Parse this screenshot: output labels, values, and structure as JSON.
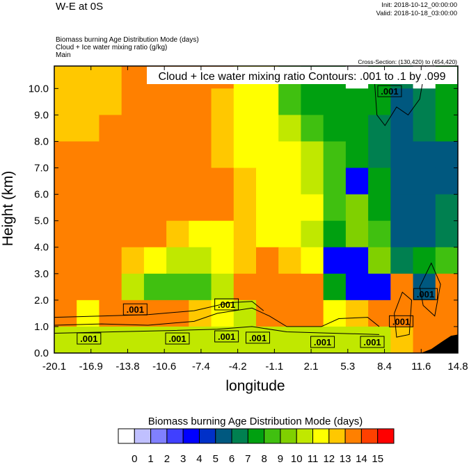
{
  "header": {
    "title": "W-E at 0S",
    "init": "Init: 2018-10-12_00:00:00",
    "valid": "Valid: 2018-10-18_03:00:00",
    "field1": "Biomass burning Age Distribution Mode   (days)",
    "field2": "Cloud + Ice water mixing ratio   (g/kg)",
    "field3": "Main",
    "cross_section": "Cross-Section: (130,420) to (454,420)"
  },
  "chart_data": {
    "type": "heatmap",
    "xlabel": "longitude",
    "ylabel": "Height (km)",
    "xlim": [
      -20.1,
      14.8
    ],
    "ylim": [
      0,
      10.85
    ],
    "xticks": [
      "-20.1",
      "-16.9",
      "-13.8",
      "-10.6",
      "-7.4",
      "-4.2",
      "-1.1",
      "2.1",
      "5.3",
      "8.4",
      "11.6",
      "14.8"
    ],
    "yticks": [
      "0.0",
      "1.0",
      "2.0",
      "3.0",
      "4.0",
      "5.0",
      "6.0",
      "7.0",
      "8.0",
      "9.0",
      "10.0"
    ],
    "contour_title": "Cloud + Ice water mixing ratio Contours: .001 to .1 by .099",
    "grid_note_rows_top_to_bottom": true,
    "grid": [
      [
        13,
        13,
        13,
        14,
        14,
        14,
        14,
        14,
        12,
        12,
        9,
        8,
        8,
        0,
        8,
        7,
        0,
        8
      ],
      [
        13,
        13,
        13,
        14,
        14,
        14,
        14,
        13,
        12,
        12,
        9,
        8,
        8,
        8,
        8,
        6,
        7,
        8
      ],
      [
        13,
        13,
        14,
        14,
        14,
        14,
        14,
        13,
        12,
        12,
        11,
        9,
        8,
        8,
        7,
        6,
        7,
        8
      ],
      [
        14,
        14,
        14,
        14,
        14,
        14,
        14,
        13,
        12,
        12,
        12,
        11,
        9,
        8,
        7,
        6,
        6,
        6
      ],
      [
        14,
        14,
        14,
        14,
        14,
        14,
        14,
        14,
        13,
        12,
        12,
        11,
        9,
        4,
        8,
        6,
        6,
        6
      ],
      [
        14,
        14,
        14,
        14,
        14,
        14,
        14,
        14,
        13,
        12,
        12,
        12,
        9,
        10,
        8,
        6,
        6,
        7
      ],
      [
        14,
        14,
        14,
        14,
        14,
        13,
        12,
        12,
        13,
        12,
        12,
        11,
        8,
        10,
        9,
        6,
        6,
        7
      ],
      [
        14,
        14,
        14,
        13,
        12,
        11,
        11,
        12,
        13,
        14,
        13,
        12,
        4,
        4,
        10,
        7,
        8,
        9
      ],
      [
        14,
        14,
        14,
        11,
        9,
        9,
        9,
        11,
        14,
        14,
        14,
        14,
        8,
        4,
        4,
        14,
        6,
        14
      ],
      [
        14,
        12,
        14,
        14,
        14,
        14,
        13,
        12,
        11,
        14,
        14,
        14,
        12,
        13,
        14,
        14,
        14,
        14
      ],
      [
        11,
        11,
        11,
        11,
        11,
        11,
        11,
        11,
        11,
        11,
        11,
        11,
        11,
        11,
        11,
        13,
        14,
        14
      ]
    ],
    "row_heights_km": [
      [
        10,
        10.85
      ],
      [
        9,
        10
      ],
      [
        8,
        9
      ],
      [
        7,
        8
      ],
      [
        6,
        7
      ],
      [
        5,
        6
      ],
      [
        4,
        5
      ],
      [
        3,
        4
      ],
      [
        2,
        3
      ],
      [
        1,
        2
      ],
      [
        0,
        1
      ]
    ],
    "contour_labels": [
      {
        "text": ".001",
        "lon": -13.1,
        "h": 1.65
      },
      {
        "text": ".001",
        "lon": -17.1,
        "h": 0.55
      },
      {
        "text": ".001",
        "lon": -9.45,
        "h": 0.55
      },
      {
        "text": ".001",
        "lon": -5.2,
        "h": 1.84
      },
      {
        "text": ".001",
        "lon": -5.2,
        "h": 0.63
      },
      {
        "text": ".001",
        "lon": -2.5,
        "h": 0.58
      },
      {
        "text": ".001",
        "lon": 3.1,
        "h": 0.42
      },
      {
        "text": ".001",
        "lon": 7.4,
        "h": 0.42
      },
      {
        "text": ".001",
        "lon": 8.9,
        "h": 9.9
      },
      {
        "text": ".001",
        "lon": 9.9,
        "h": 1.2
      },
      {
        "text": ".001",
        "lon": 12.0,
        "h": 2.23
      }
    ],
    "contours": [
      [
        [
          -20.1,
          1.05
        ],
        [
          -16,
          1.1
        ],
        [
          -12,
          1.05
        ],
        [
          -8,
          1.2
        ],
        [
          -6,
          1.5
        ],
        [
          -3,
          1.7
        ],
        [
          -1.5,
          1.4
        ],
        [
          0,
          1.0
        ],
        [
          3,
          1.0
        ],
        [
          4.5,
          1.3
        ],
        [
          7,
          1.35
        ],
        [
          8,
          1.0
        ]
      ],
      [
        [
          -20.1,
          0.75
        ],
        [
          -15,
          0.8
        ],
        [
          -10,
          0.85
        ],
        [
          -6,
          0.9
        ],
        [
          -3,
          1.0
        ],
        [
          0,
          0.8
        ],
        [
          4,
          0.75
        ],
        [
          8,
          0.7
        ]
      ],
      [
        [
          -20.1,
          1.35
        ],
        [
          -16,
          1.4
        ],
        [
          -12,
          1.45
        ],
        [
          -8,
          1.6
        ],
        [
          -5,
          1.9
        ],
        [
          -3,
          1.95
        ],
        [
          -2,
          1.6
        ]
      ],
      [
        [
          9.3,
          1.5
        ],
        [
          10,
          2.3
        ],
        [
          10.8,
          2.0
        ],
        [
          10.6,
          0.7
        ],
        [
          9.5,
          0.6
        ],
        [
          9.3,
          1.5
        ]
      ],
      [
        [
          11.5,
          2.5
        ],
        [
          12.5,
          3.4
        ],
        [
          13.3,
          2.6
        ],
        [
          12.8,
          1.4
        ],
        [
          11.8,
          1.8
        ],
        [
          11.5,
          2.5
        ]
      ],
      [
        [
          7.5,
          10.85
        ],
        [
          7.8,
          9.0
        ],
        [
          8.5,
          8.6
        ],
        [
          9.5,
          9.3
        ],
        [
          10.5,
          9.0
        ],
        [
          11.5,
          9.6
        ],
        [
          12,
          10.85
        ]
      ]
    ],
    "terrain": [
      [
        11.6,
        0
      ],
      [
        12.5,
        0.15
      ],
      [
        13.5,
        0.45
      ],
      [
        14.2,
        0.65
      ],
      [
        14.8,
        0.7
      ],
      [
        14.8,
        0
      ]
    ],
    "colorbar": {
      "title": "Biomass burning Age Distribution Mode  (days)",
      "labels": [
        "0",
        "1",
        "2",
        "3",
        "4",
        "5",
        "6",
        "7",
        "8",
        "9",
        "10",
        "11",
        "12",
        "13",
        "14",
        "15"
      ],
      "colors": [
        "#ffffff",
        "#c0c0ff",
        "#8080ff",
        "#4040ff",
        "#0000ff",
        "#0030c8",
        "#00587f",
        "#008050",
        "#00a010",
        "#40c010",
        "#80d000",
        "#c0e800",
        "#ffff00",
        "#ffc800",
        "#ff8000",
        "#ff4000",
        "#ff0000"
      ]
    },
    "terrain_color": "#000000"
  }
}
